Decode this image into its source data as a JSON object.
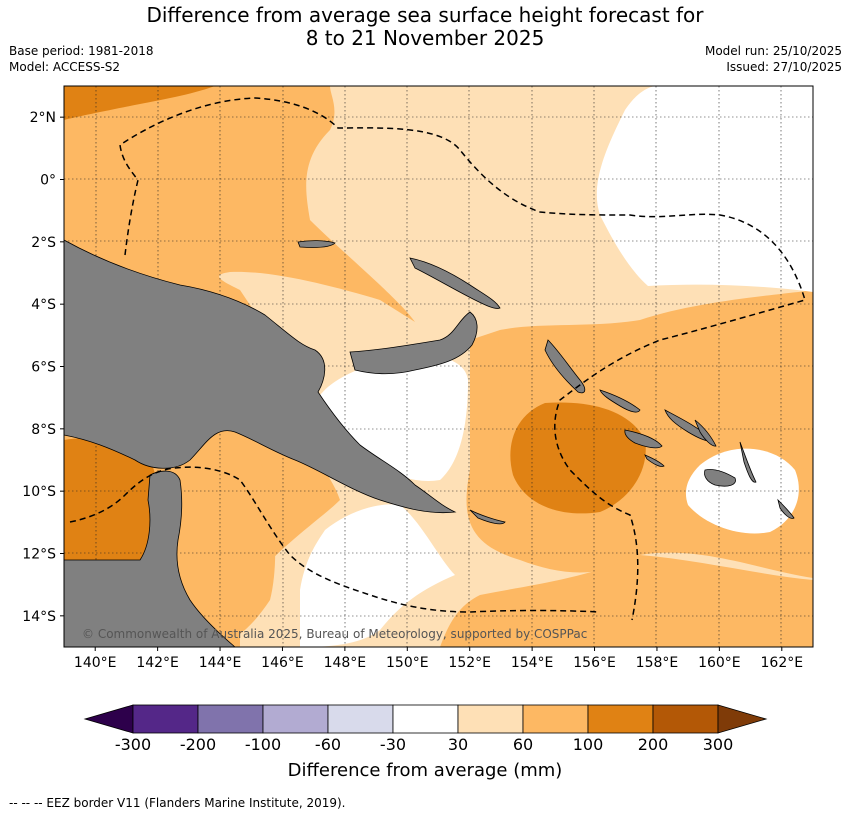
{
  "title": {
    "line1": "Difference from average sea surface height forecast for",
    "line2": "8 to 21 November 2025"
  },
  "meta": {
    "base_period": "Base period: 1981-2018",
    "model": "Model: ACCESS-S2",
    "model_run": "Model run: 25/10/2025",
    "issued": "Issued: 27/10/2025"
  },
  "map": {
    "lon_range": [
      139,
      163
    ],
    "lat_range": [
      -15,
      3
    ],
    "x_ticks": [
      {
        "lon": 140,
        "label": "140°E"
      },
      {
        "lon": 142,
        "label": "142°E"
      },
      {
        "lon": 144,
        "label": "144°E"
      },
      {
        "lon": 146,
        "label": "146°E"
      },
      {
        "lon": 148,
        "label": "148°E"
      },
      {
        "lon": 150,
        "label": "150°E"
      },
      {
        "lon": 152,
        "label": "152°E"
      },
      {
        "lon": 154,
        "label": "154°E"
      },
      {
        "lon": 156,
        "label": "156°E"
      },
      {
        "lon": 158,
        "label": "158°E"
      },
      {
        "lon": 160,
        "label": "160°E"
      },
      {
        "lon": 162,
        "label": "162°E"
      }
    ],
    "y_ticks": [
      {
        "lat": 2,
        "label": "2°N"
      },
      {
        "lat": 0,
        "label": "0°"
      },
      {
        "lat": -2,
        "label": "2°S"
      },
      {
        "lat": -4,
        "label": "4°S"
      },
      {
        "lat": -6,
        "label": "6°S"
      },
      {
        "lat": -8,
        "label": "8°S"
      },
      {
        "lat": -10,
        "label": "10°S"
      },
      {
        "lat": -12,
        "label": "12°S"
      },
      {
        "lat": -14,
        "label": "14°S"
      }
    ],
    "grid": true,
    "land_color": "#808080",
    "copyright": "© Commonwealth of Australia 2025, Bureau of Meteorology, supported by COSPPac"
  },
  "colorbar": {
    "colors": [
      "#2d004b",
      "#542788",
      "#8073ac",
      "#b2abd2",
      "#d8daeb",
      "#ffffff",
      "#fee0b6",
      "#fdb863",
      "#e08214",
      "#b35806",
      "#7f3b08"
    ],
    "labels": [
      "-300",
      "-200",
      "-100",
      "-60",
      "-30",
      "30",
      "60",
      "100",
      "200",
      "300"
    ],
    "label": "Difference from average (mm)"
  },
  "footnote": "--  --  -- EEZ border V11 (Flanders Marine Institute, 2019)."
}
